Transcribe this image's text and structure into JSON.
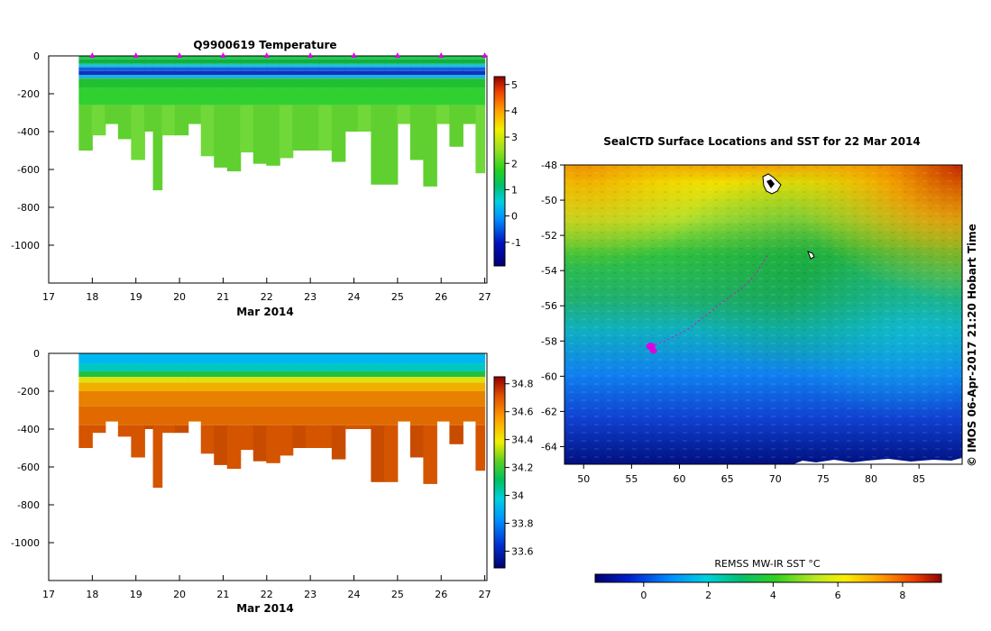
{
  "chart_data": [
    {
      "type": "heatmap",
      "id": "temperature_section",
      "title": "Q9900619  Temperature",
      "xlabel": "Mar 2014",
      "ylabel": "",
      "x_ticks": [
        "17",
        "18",
        "19",
        "20",
        "21",
        "22",
        "23",
        "24",
        "25",
        "26",
        "27"
      ],
      "y_ticks": [
        "0",
        "-200",
        "-400",
        "-600",
        "-800",
        "-1000"
      ],
      "xlim": [
        17,
        27.05
      ],
      "ylim": [
        -1200,
        0
      ],
      "profile_days": [
        17.7,
        18.0,
        18.3,
        18.6,
        18.9,
        19.2,
        19.4,
        19.6,
        19.9,
        20.2,
        20.5,
        20.8,
        21.1,
        21.4,
        21.7,
        22.0,
        22.3,
        22.6,
        22.9,
        23.2,
        23.5,
        23.8,
        24.1,
        24.4,
        24.7,
        25.0,
        25.3,
        25.6,
        25.9,
        26.2,
        26.5,
        26.8
      ],
      "profile_depths": [
        -500,
        -420,
        -360,
        -440,
        -550,
        -400,
        -710,
        -420,
        -420,
        -360,
        -530,
        -590,
        -610,
        -510,
        -570,
        -580,
        -540,
        -500,
        -500,
        -500,
        -560,
        -400,
        -400,
        -680,
        -680,
        -360,
        -550,
        -690,
        -360,
        -480,
        -360,
        -620
      ],
      "surface_markers": [
        18.0,
        19.0,
        20.0,
        21.0,
        22.0,
        23.0,
        24.0,
        25.0,
        26.0,
        27.0
      ],
      "colorbar": {
        "min": -1.9,
        "max": 5.3,
        "ticks": [
          "5",
          "4",
          "3",
          "2",
          "1",
          "0",
          "-1"
        ],
        "tick_values": [
          5,
          4,
          3,
          2,
          1,
          0,
          -1
        ]
      },
      "colors": {
        "marker": "#e000e0"
      }
    },
    {
      "type": "heatmap",
      "id": "salinity_section",
      "title": "",
      "xlabel": "Mar 2014",
      "ylabel": "",
      "x_ticks": [
        "17",
        "18",
        "19",
        "20",
        "21",
        "22",
        "23",
        "24",
        "25",
        "26",
        "27"
      ],
      "y_ticks": [
        "0",
        "-200",
        "-400",
        "-600",
        "-800",
        "-1000"
      ],
      "xlim": [
        17,
        27.05
      ],
      "ylim": [
        -1200,
        0
      ],
      "colorbar": {
        "min": 33.48,
        "max": 34.85,
        "ticks": [
          "34.8",
          "34.6",
          "34.4",
          "34.2",
          "34",
          "33.8",
          "33.6"
        ],
        "tick_values": [
          34.8,
          34.6,
          34.4,
          34.2,
          34.0,
          33.8,
          33.6
        ]
      }
    },
    {
      "type": "heatmap",
      "id": "sst_map",
      "title": "SealCTD Surface Locations and SST for 22 Mar 2014",
      "xlabel": "",
      "ylabel": "",
      "x_ticks": [
        "50",
        "55",
        "60",
        "65",
        "70",
        "75",
        "80",
        "85"
      ],
      "x_tick_values": [
        50,
        55,
        60,
        65,
        70,
        75,
        80,
        85
      ],
      "y_ticks": [
        "-48",
        "-50",
        "-52",
        "-54",
        "-56",
        "-58",
        "-60",
        "-62",
        "-64"
      ],
      "y_tick_values": [
        -48,
        -50,
        -52,
        -54,
        -56,
        -58,
        -60,
        -62,
        -64
      ],
      "xlim": [
        48,
        89.5
      ],
      "ylim": [
        -65,
        -48
      ],
      "track": [
        [
          57.0,
          -58.3
        ],
        [
          58.5,
          -58.0
        ],
        [
          61.0,
          -57.3
        ],
        [
          64.0,
          -56.0
        ],
        [
          66.5,
          -55.0
        ],
        [
          68.0,
          -54.2
        ],
        [
          69.3,
          -53.0
        ]
      ],
      "colorbar": {
        "label": "REMSS MW-IR SST °C",
        "min": -1.5,
        "max": 9.2,
        "ticks": [
          "0",
          "2",
          "4",
          "6",
          "8"
        ],
        "tick_values": [
          0,
          2,
          4,
          6,
          8
        ]
      },
      "colors": {
        "track": "#e000e0"
      }
    }
  ],
  "copyright": "© IMOS 06-Apr-2017 21:20 Hobart Time"
}
